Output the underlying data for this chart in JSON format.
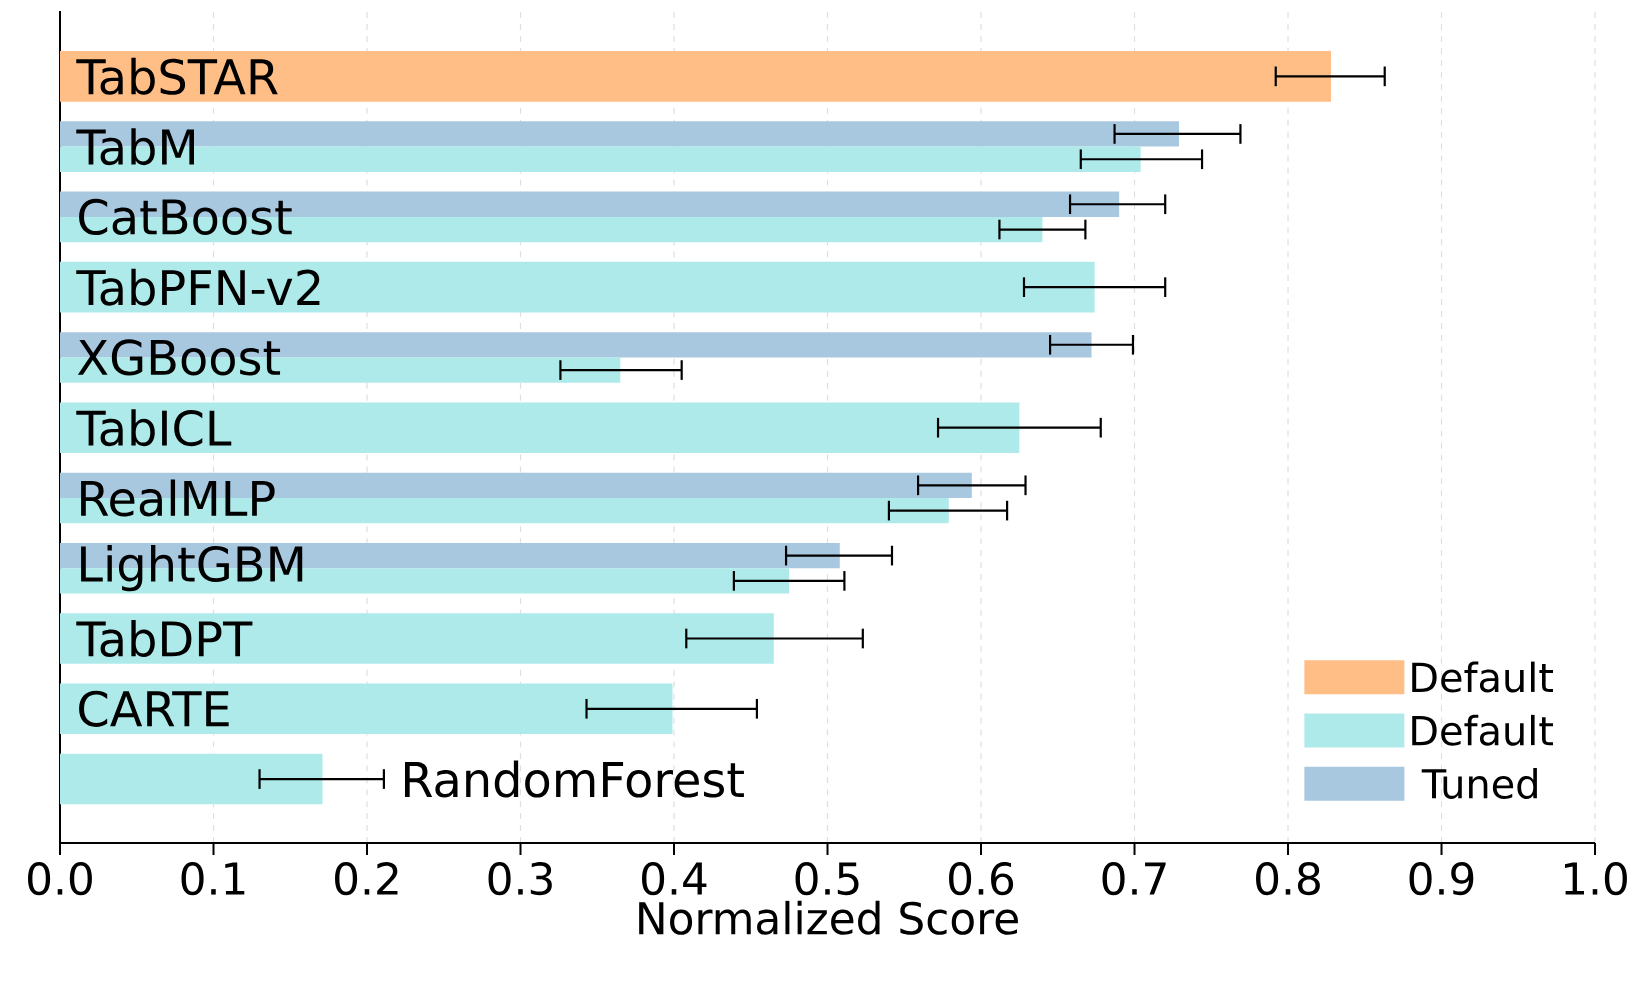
{
  "chart_data": {
    "type": "bar",
    "orientation": "horizontal",
    "xlabel": "Normalized Score",
    "categories": [
      "TabSTAR",
      "TabM",
      "CatBoost",
      "TabPFN-v2",
      "XGBoost",
      "TabICL",
      "RealMLP",
      "LightGBM",
      "TabDPT",
      "CARTE",
      "RandomForest"
    ],
    "series": [
      {
        "name": "Default",
        "color": "#ffbe85",
        "values": [
          0.828,
          null,
          null,
          null,
          null,
          null,
          null,
          null,
          null,
          null,
          null
        ],
        "errors": [
          [
            0.792,
            0.863
          ],
          null,
          null,
          null,
          null,
          null,
          null,
          null,
          null,
          null,
          null
        ]
      },
      {
        "name": "Default",
        "color": "#aeeaea",
        "values": [
          null,
          0.704,
          0.64,
          0.674,
          0.365,
          0.625,
          0.579,
          0.475,
          0.465,
          0.399,
          0.171
        ],
        "errors": [
          null,
          [
            0.665,
            0.744
          ],
          [
            0.612,
            0.668
          ],
          [
            0.628,
            0.72
          ],
          [
            0.326,
            0.405
          ],
          [
            0.572,
            0.678
          ],
          [
            0.54,
            0.617
          ],
          [
            0.439,
            0.511
          ],
          [
            0.408,
            0.523
          ],
          [
            0.343,
            0.454
          ],
          [
            0.13,
            0.211
          ]
        ]
      },
      {
        "name": "Tuned",
        "color": "#a8c8e0",
        "values": [
          null,
          0.729,
          0.69,
          null,
          0.672,
          null,
          0.594,
          0.508,
          null,
          null,
          null
        ],
        "errors": [
          null,
          [
            0.687,
            0.769
          ],
          [
            0.658,
            0.72
          ],
          null,
          [
            0.645,
            0.699
          ],
          null,
          [
            0.559,
            0.629
          ],
          [
            0.473,
            0.542
          ],
          null,
          null,
          null
        ]
      }
    ],
    "xlim": [
      0,
      1.0
    ],
    "xticks": [
      {
        "value": 0,
        "label": "0.0"
      },
      0.1,
      0.2,
      0.3,
      0.4,
      0.5,
      0.6,
      0.7,
      0.8,
      0.9,
      {
        "value": 1.0,
        "label": "1.0"
      }
    ],
    "grid": "x",
    "legend": "bottom right"
  }
}
